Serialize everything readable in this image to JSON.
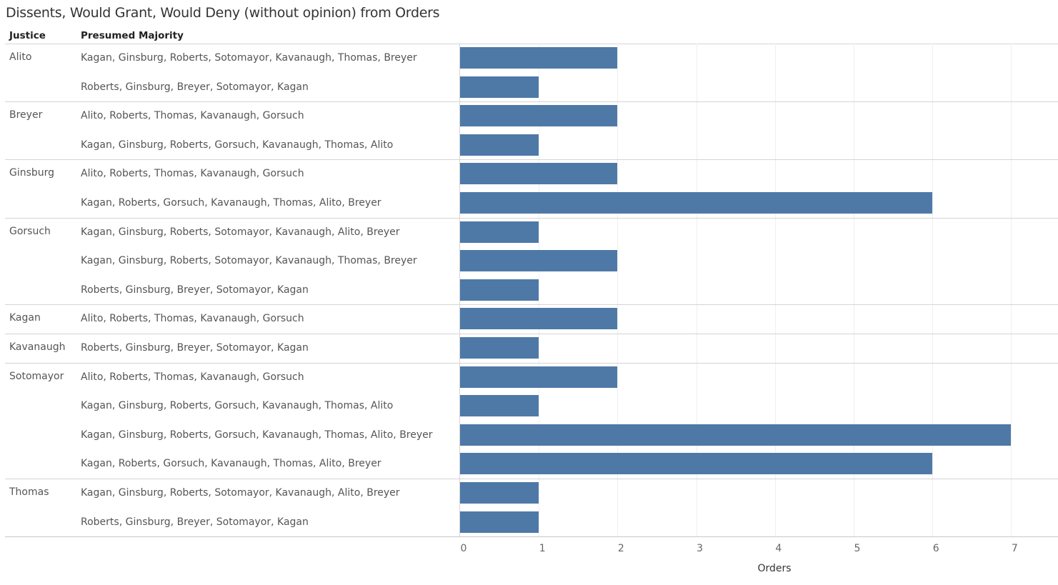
{
  "chart_data": {
    "type": "bar",
    "orientation": "horizontal",
    "title": "Dissents, Would Grant, Would Deny (without opinion) from Orders",
    "column_headers": [
      "Justice",
      "Presumed Majority"
    ],
    "xlabel": "Orders",
    "xlim": [
      0,
      7.6
    ],
    "xticks": [
      0,
      1,
      2,
      3,
      4,
      5,
      6,
      7
    ],
    "grid": true,
    "bar_color": "#4e79a7",
    "groups": [
      {
        "justice": "Alito",
        "rows": [
          {
            "majority": "Kagan, Ginsburg, Roberts, Sotomayor, Kavanaugh, Thomas, Breyer",
            "value": 2
          },
          {
            "majority": "Roberts, Ginsburg, Breyer, Sotomayor, Kagan",
            "value": 1
          }
        ]
      },
      {
        "justice": "Breyer",
        "rows": [
          {
            "majority": "Alito, Roberts, Thomas, Kavanaugh, Gorsuch",
            "value": 2
          },
          {
            "majority": "Kagan, Ginsburg, Roberts, Gorsuch, Kavanaugh, Thomas, Alito",
            "value": 1
          }
        ]
      },
      {
        "justice": "Ginsburg",
        "rows": [
          {
            "majority": "Alito, Roberts, Thomas, Kavanaugh, Gorsuch",
            "value": 2
          },
          {
            "majority": "Kagan, Roberts, Gorsuch, Kavanaugh, Thomas, Alito, Breyer",
            "value": 6
          }
        ]
      },
      {
        "justice": "Gorsuch",
        "rows": [
          {
            "majority": "Kagan, Ginsburg, Roberts, Sotomayor, Kavanaugh, Alito, Breyer",
            "value": 1
          },
          {
            "majority": "Kagan, Ginsburg, Roberts, Sotomayor, Kavanaugh, Thomas, Breyer",
            "value": 2
          },
          {
            "majority": "Roberts, Ginsburg, Breyer, Sotomayor, Kagan",
            "value": 1
          }
        ]
      },
      {
        "justice": "Kagan",
        "rows": [
          {
            "majority": "Alito, Roberts, Thomas, Kavanaugh, Gorsuch",
            "value": 2
          }
        ]
      },
      {
        "justice": "Kavanaugh",
        "rows": [
          {
            "majority": "Roberts, Ginsburg, Breyer, Sotomayor, Kagan",
            "value": 1
          }
        ]
      },
      {
        "justice": "Sotomayor",
        "rows": [
          {
            "majority": "Alito, Roberts, Thomas, Kavanaugh, Gorsuch",
            "value": 2
          },
          {
            "majority": "Kagan, Ginsburg, Roberts, Gorsuch, Kavanaugh, Thomas, Alito",
            "value": 1
          },
          {
            "majority": "Kagan, Ginsburg, Roberts, Gorsuch, Kavanaugh, Thomas, Alito, Breyer",
            "value": 7
          },
          {
            "majority": "Kagan, Roberts, Gorsuch, Kavanaugh, Thomas, Alito, Breyer",
            "value": 6
          }
        ]
      },
      {
        "justice": "Thomas",
        "rows": [
          {
            "majority": "Kagan, Ginsburg, Roberts, Sotomayor, Kavanaugh, Alito, Breyer",
            "value": 1
          },
          {
            "majority": "Roberts, Ginsburg, Breyer, Sotomayor, Kagan",
            "value": 1
          }
        ]
      }
    ]
  }
}
